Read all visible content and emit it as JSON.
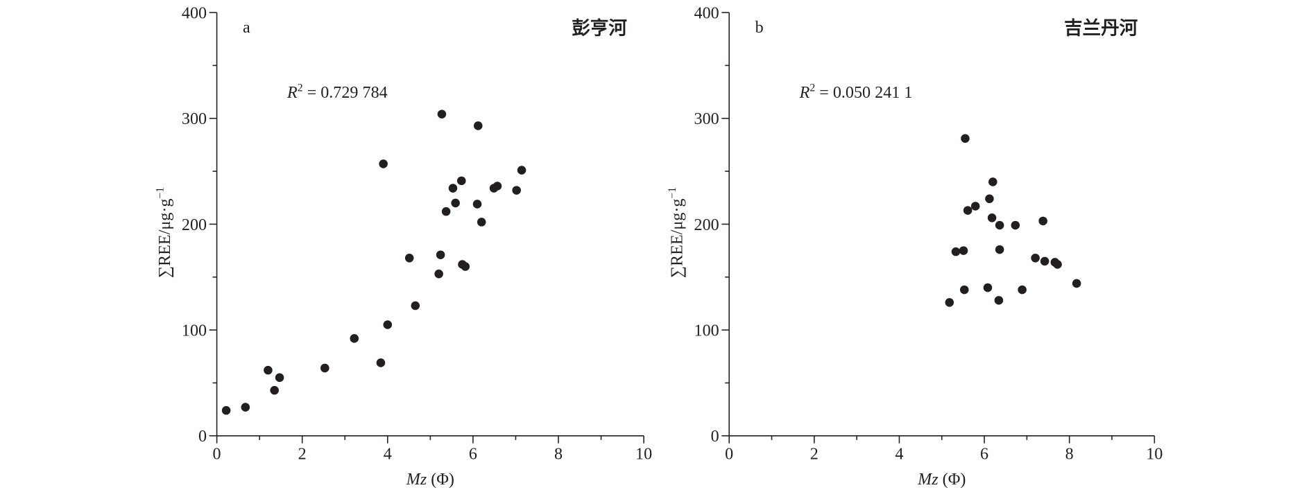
{
  "chart_data": [
    {
      "type": "scatter",
      "panel_label": "a",
      "title": "彭亨河",
      "annotation": {
        "var": "R",
        "power": "2",
        "text": " = 0.729 784"
      },
      "xlabel": {
        "var": "Mz",
        "unit": " (Φ)"
      },
      "ylabel": {
        "text": "∑REE/μg·g",
        "power": "−1"
      },
      "xlim": [
        0,
        10
      ],
      "ylim": [
        0,
        400
      ],
      "xticks": [
        0,
        2,
        4,
        6,
        8,
        10
      ],
      "yticks": [
        0,
        100,
        200,
        300,
        400
      ],
      "xminorticks": [
        1,
        3,
        5,
        7,
        9
      ],
      "yminorticks": [
        50,
        150,
        250,
        350
      ],
      "series": [
        {
          "color": "#231f20",
          "x": [
            0.22,
            0.67,
            1.2,
            1.35,
            1.47,
            2.53,
            3.22,
            3.84,
            3.9,
            4.0,
            4.51,
            4.65,
            5.2,
            5.24,
            5.27,
            5.37,
            5.53,
            5.59,
            5.73,
            5.75,
            5.82,
            6.1,
            6.12,
            6.2,
            6.49,
            6.57,
            7.02,
            7.14
          ],
          "values": [
            24,
            27,
            62,
            43,
            55,
            64,
            92,
            69,
            257,
            105,
            168,
            123,
            153,
            171,
            304,
            212,
            234,
            220,
            241,
            162,
            160,
            219,
            293,
            202,
            234,
            236,
            232,
            251
          ]
        }
      ]
    },
    {
      "type": "scatter",
      "panel_label": "b",
      "title": "吉兰丹河",
      "annotation": {
        "var": "R",
        "power": "2",
        "text": " = 0.050 241 1"
      },
      "xlabel": {
        "var": "Mz",
        "unit": " (Φ)"
      },
      "ylabel": {
        "text": "∑REE/μg·g",
        "power": "−1"
      },
      "xlim": [
        0,
        10
      ],
      "ylim": [
        0,
        400
      ],
      "xticks": [
        0,
        2,
        4,
        6,
        8,
        10
      ],
      "yticks": [
        0,
        100,
        200,
        300,
        400
      ],
      "xminorticks": [
        1,
        3,
        5,
        7,
        9
      ],
      "yminorticks": [
        50,
        150,
        250,
        350
      ],
      "series": [
        {
          "color": "#231f20",
          "x": [
            5.18,
            5.33,
            5.51,
            5.53,
            5.55,
            5.61,
            5.79,
            6.08,
            6.12,
            6.2,
            6.18,
            6.36,
            6.34,
            6.36,
            6.73,
            6.89,
            7.2,
            7.38,
            7.42,
            7.66,
            7.72,
            8.17
          ],
          "values": [
            126,
            174,
            175,
            138,
            281,
            213,
            217,
            140,
            224,
            240,
            206,
            199,
            128,
            176,
            199,
            138,
            168,
            203,
            165,
            164,
            162,
            144
          ]
        }
      ]
    }
  ]
}
